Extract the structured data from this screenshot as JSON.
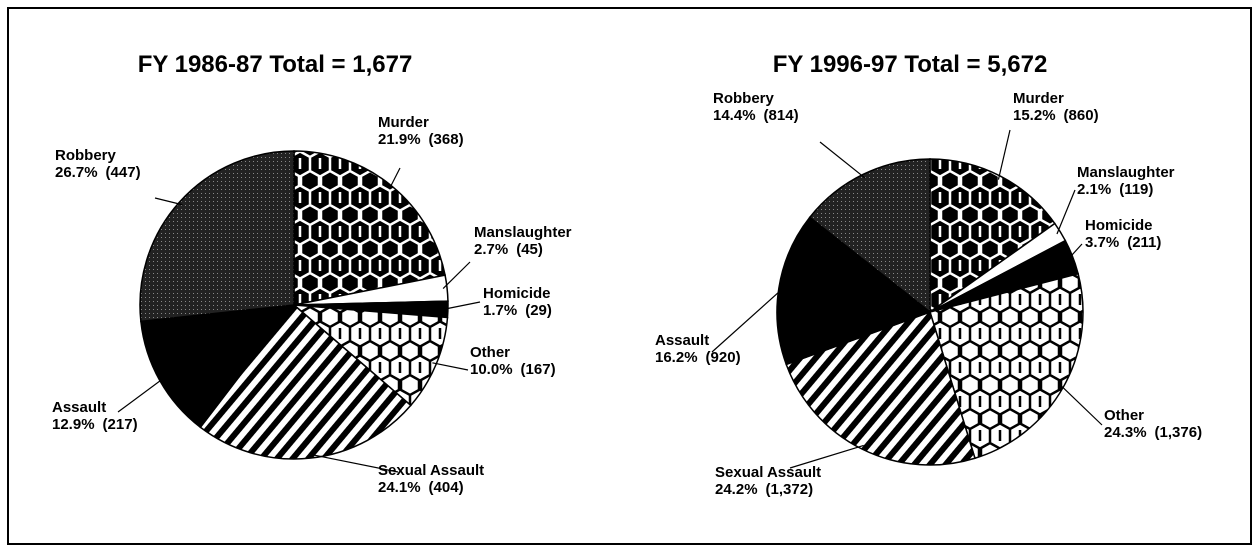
{
  "chart_data": [
    {
      "type": "pie",
      "title": "FY 1986-87 Total = 1,677",
      "categories": [
        "Murder",
        "Manslaughter",
        "Homicide",
        "Other",
        "Sexual Assault",
        "Assault",
        "Robbery"
      ],
      "values": [
        21.9,
        2.7,
        1.7,
        10.0,
        24.1,
        12.9,
        26.7
      ],
      "value_labels": [
        "21.9%",
        "2.7%",
        "1.7%",
        "10.0%",
        "24.1%",
        "12.9%",
        "26.7%"
      ],
      "count_labels": [
        "(368)",
        "(45)",
        "(29)",
        "(167)",
        "(404)",
        "(217)",
        "(447)"
      ],
      "patterns": [
        "hex-dark",
        "white",
        "black",
        "hex-light",
        "stripes",
        "black",
        "stipple"
      ]
    },
    {
      "type": "pie",
      "title": "FY 1996-97 Total = 5,672",
      "categories": [
        "Murder",
        "Manslaughter",
        "Homicide",
        "Other",
        "Sexual Assault",
        "Assault",
        "Robbery"
      ],
      "values": [
        15.2,
        2.1,
        3.7,
        24.3,
        24.2,
        16.2,
        14.4
      ],
      "value_labels": [
        "15.2%",
        "2.1%",
        "3.7%",
        "24.3%",
        "24.2%",
        "16.2%",
        "14.4%"
      ],
      "count_labels": [
        "(860)",
        "(119)",
        "(211)",
        "(1,376)",
        "(1,372)",
        "(920)",
        "(814)"
      ],
      "patterns": [
        "hex-dark",
        "white",
        "black",
        "hex-light",
        "stripes",
        "black",
        "stipple"
      ]
    }
  ]
}
